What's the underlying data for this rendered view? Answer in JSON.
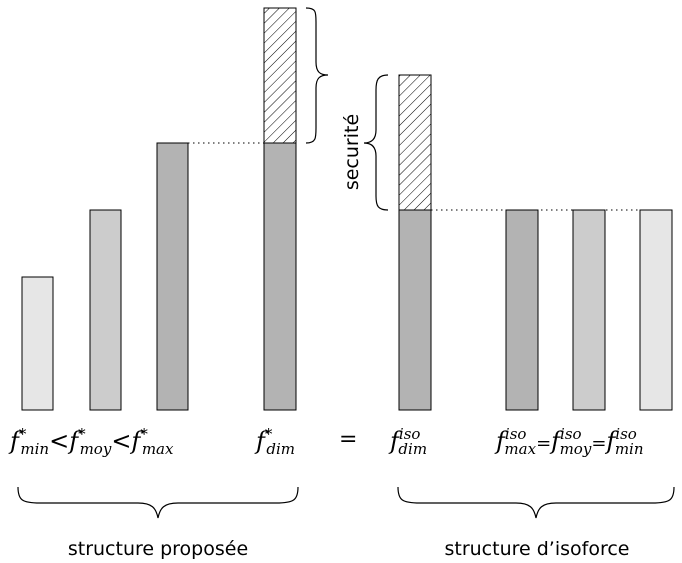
{
  "colors": {
    "light": "#e6e6e6",
    "medium": "#cccccc",
    "dark": "#b3b3b3",
    "hatch": "#000000"
  },
  "left": {
    "caption": "structure proposée",
    "bars": [
      {
        "id": "fmin",
        "tone": "light",
        "level": 1,
        "base": "f",
        "sup": "*",
        "sub": "min"
      },
      {
        "id": "fmoy",
        "tone": "medium",
        "level": 2,
        "base": "f",
        "sup": "*",
        "sub": "moy"
      },
      {
        "id": "fmax",
        "tone": "dark",
        "level": 3,
        "base": "f",
        "sup": "*",
        "sub": "max"
      },
      {
        "id": "fdim",
        "tone": "dark",
        "level": 3,
        "safety_level": 5,
        "base": "f",
        "sup": "*",
        "sub": "dim"
      }
    ],
    "relation": "<"
  },
  "right": {
    "caption": "structure d’isoforce",
    "bars": [
      {
        "id": "fdim-iso",
        "tone": "dark",
        "level": 3,
        "safety_level": 5,
        "base": "f",
        "sup": "iso",
        "sub": "dim"
      },
      {
        "id": "fmax-iso",
        "tone": "dark",
        "level": 3,
        "base": "f",
        "sup": "iso",
        "sub": "max"
      },
      {
        "id": "fmoy-iso",
        "tone": "medium",
        "level": 3,
        "base": "f",
        "sup": "iso",
        "sub": "moy"
      },
      {
        "id": "fmin-iso",
        "tone": "light",
        "level": 3,
        "base": "f",
        "sup": "iso",
        "sub": "min"
      }
    ],
    "relation": "="
  },
  "equals_sign": "=",
  "safety_label": "securité"
}
